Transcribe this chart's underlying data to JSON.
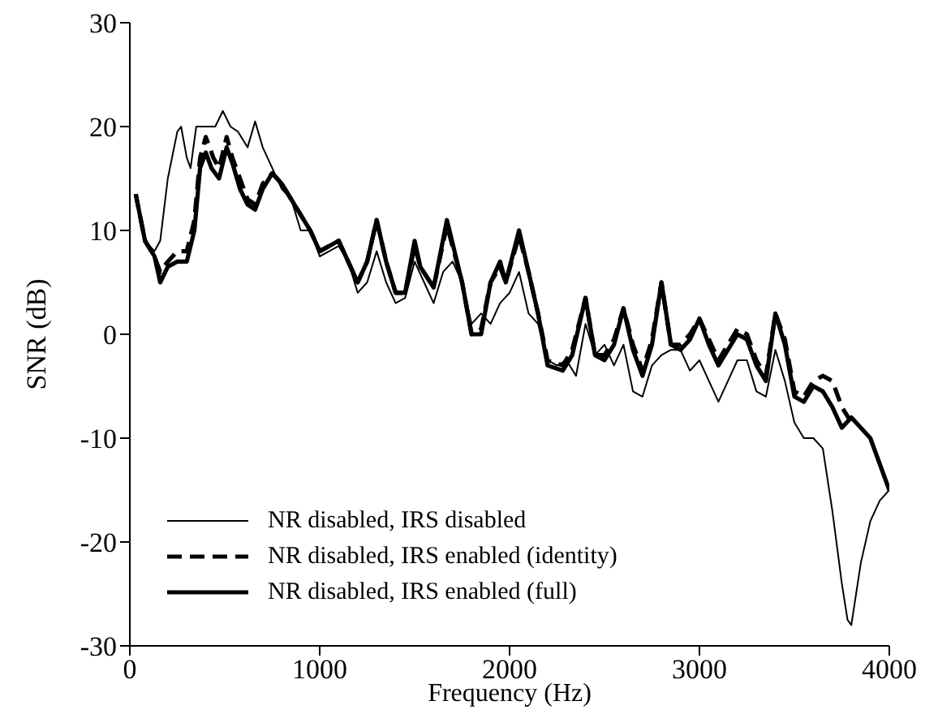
{
  "chart_data": {
    "type": "line",
    "xlabel": "Frequency (Hz)",
    "ylabel": "SNR (dB)",
    "xlim": [
      0,
      4000
    ],
    "xticks": [
      0,
      1000,
      2000,
      3000,
      4000
    ],
    "ylim": [
      -30,
      30
    ],
    "yticks": [
      -30,
      -20,
      -10,
      0,
      10,
      20,
      30
    ],
    "grid": false,
    "legend": "bottom left",
    "marker": "none",
    "series": [
      {
        "name": "NR disabled, IRS disabled",
        "color": "#000000",
        "line_style": "solid",
        "x": [
          31,
          80,
          130,
          160,
          200,
          250,
          270,
          300,
          320,
          350,
          400,
          450,
          490,
          530,
          570,
          620,
          660,
          700,
          750,
          800,
          850,
          900,
          950,
          1000,
          1050,
          1100,
          1150,
          1200,
          1250,
          1300,
          1350,
          1400,
          1450,
          1500,
          1550,
          1600,
          1650,
          1700,
          1750,
          1800,
          1850,
          1900,
          1950,
          2000,
          2050,
          2100,
          2150,
          2200,
          2250,
          2300,
          2350,
          2400,
          2450,
          2500,
          2550,
          2600,
          2650,
          2700,
          2750,
          2800,
          2850,
          2900,
          2950,
          3000,
          3050,
          3100,
          3150,
          3200,
          3250,
          3300,
          3350,
          3400,
          3450,
          3500,
          3550,
          3600,
          3650,
          3700,
          3750,
          3780,
          3800,
          3850,
          3900,
          3950,
          4000
        ],
        "values": [
          13.5,
          9,
          8,
          9,
          15,
          19.5,
          20,
          17,
          16,
          20,
          20,
          20,
          21.5,
          20,
          19.5,
          18,
          20.5,
          18,
          16,
          14,
          13,
          10,
          10,
          7.5,
          8,
          8.5,
          7,
          4,
          5,
          8,
          5,
          3,
          3.5,
          7,
          5,
          3,
          6,
          7,
          5,
          1,
          2,
          1,
          3,
          4,
          6,
          2,
          1,
          -2.5,
          -3,
          -2.5,
          -4,
          1,
          -2,
          -1,
          -3,
          -1,
          -5.5,
          -6,
          -3,
          -2,
          -1.5,
          -1.5,
          -3.5,
          -2.5,
          -4.5,
          -6.5,
          -4.5,
          -2.5,
          -2.5,
          -5.5,
          -6,
          -1.5,
          -4.5,
          -8.5,
          -10,
          -10,
          -11,
          -17,
          -24,
          -27.5,
          -28,
          -22,
          -18,
          -16,
          -15
        ]
      },
      {
        "name": "NR disabled, IRS enabled (identity)",
        "color": "#000000",
        "line_style": "dashed",
        "x": [
          31,
          80,
          130,
          160,
          200,
          250,
          300,
          340,
          370,
          400,
          440,
          470,
          510,
          540,
          580,
          620,
          660,
          700,
          750,
          800,
          850,
          900,
          950,
          1000,
          1050,
          1100,
          1150,
          1200,
          1250,
          1300,
          1350,
          1400,
          1450,
          1500,
          1530,
          1600,
          1670,
          1750,
          1800,
          1850,
          1900,
          1950,
          1980,
          2050,
          2100,
          2150,
          2200,
          2280,
          2330,
          2400,
          2450,
          2500,
          2550,
          2600,
          2650,
          2700,
          2750,
          2800,
          2850,
          2900,
          2950,
          3000,
          3050,
          3100,
          3200,
          3250,
          3300,
          3350,
          3400,
          3450,
          3500,
          3550,
          3600,
          3650,
          3700,
          3750,
          3800
        ],
        "values": [
          13.5,
          9,
          7.5,
          6,
          7,
          8,
          8,
          11,
          17,
          19,
          17,
          16,
          19,
          17,
          15,
          13,
          12.5,
          14.5,
          15.5,
          14.5,
          13,
          11.5,
          10,
          8,
          8.5,
          9,
          7,
          5,
          7,
          11,
          7,
          4,
          4,
          8.5,
          6.5,
          4.5,
          10.5,
          5,
          0,
          0.5,
          5,
          6.5,
          5,
          9.5,
          6,
          2,
          -2.5,
          -3,
          -1.5,
          3.5,
          -2,
          -2,
          -0.5,
          2.5,
          -1,
          -3.5,
          -0.5,
          5,
          -1,
          -1,
          0,
          1.5,
          -0.5,
          -2.5,
          0.5,
          0,
          -2.5,
          -4,
          2,
          -0.5,
          -5.5,
          -6,
          -4.5,
          -4,
          -4.5,
          -7,
          -8.5
        ]
      },
      {
        "name": "NR disabled, IRS enabled (full)",
        "color": "#000000",
        "line_style": "solid",
        "x": [
          31,
          80,
          130,
          160,
          200,
          250,
          300,
          340,
          370,
          400,
          430,
          470,
          510,
          540,
          580,
          620,
          660,
          700,
          750,
          800,
          850,
          900,
          950,
          1000,
          1050,
          1100,
          1150,
          1200,
          1250,
          1300,
          1350,
          1400,
          1450,
          1500,
          1530,
          1600,
          1670,
          1750,
          1800,
          1850,
          1900,
          1950,
          1980,
          2050,
          2100,
          2150,
          2200,
          2280,
          2330,
          2400,
          2450,
          2500,
          2550,
          2600,
          2650,
          2700,
          2750,
          2800,
          2850,
          2900,
          2950,
          3000,
          3050,
          3100,
          3200,
          3250,
          3300,
          3350,
          3400,
          3450,
          3500,
          3550,
          3600,
          3650,
          3700,
          3750,
          3800,
          3850,
          3900,
          3950,
          4000
        ],
        "values": [
          13.5,
          9,
          7.5,
          5,
          6.5,
          7,
          7,
          10,
          16,
          17.5,
          16,
          15,
          18,
          16.5,
          14,
          12.5,
          12,
          14,
          15.5,
          14.5,
          13,
          11.5,
          10,
          8,
          8.5,
          9,
          7,
          5,
          7,
          11,
          7,
          4,
          4,
          9,
          6.5,
          4.5,
          11,
          5,
          0,
          0,
          5,
          7,
          5,
          10,
          6,
          2,
          -3,
          -3.5,
          -2,
          3.5,
          -2,
          -2.5,
          -1,
          2.5,
          -1.5,
          -4,
          -1,
          5,
          -1,
          -1.5,
          -0.5,
          1.5,
          -1,
          -3,
          0,
          -0.5,
          -3,
          -4.5,
          2,
          -1,
          -6,
          -6.5,
          -5,
          -5.5,
          -7,
          -9,
          -8,
          -9,
          -10,
          -12.5,
          -15
        ]
      }
    ]
  }
}
